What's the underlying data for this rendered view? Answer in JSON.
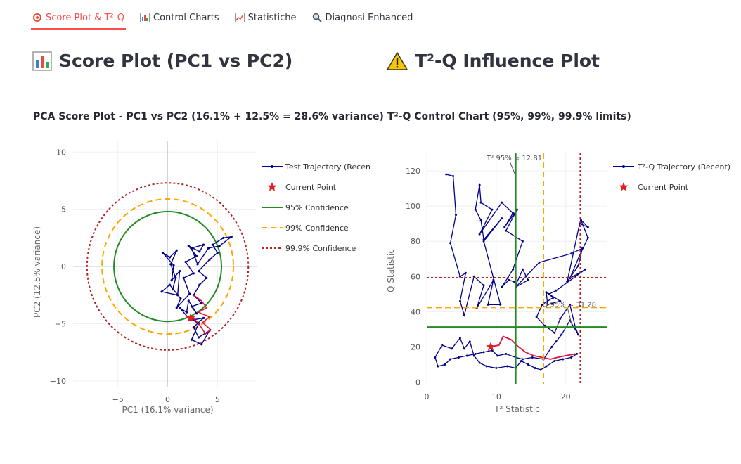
{
  "tabs": [
    {
      "label": "Score Plot & T²-Q",
      "icon": "target-icon",
      "active": true
    },
    {
      "label": "Control Charts",
      "icon": "bar-chart-icon",
      "active": false
    },
    {
      "label": "Statistiche",
      "icon": "line-chart-icon",
      "active": false
    },
    {
      "label": "Diagnosi Enhanced",
      "icon": "magnifier-icon",
      "active": false
    }
  ],
  "sections": {
    "left": {
      "title": "Score Plot (PC1 vs PC2)",
      "icon": "bar-chart-icon"
    },
    "right": {
      "title": "T²-Q Influence Plot",
      "icon": "warning-icon"
    }
  },
  "colors": {
    "accent": "#ff4b4b",
    "trajectory": "#00008b",
    "recent": "#dc143c",
    "ci95": "#228b22",
    "ci99": "#ffa500",
    "ci999": "#b22222"
  },
  "chart_data": [
    {
      "type": "scatter",
      "title": "PCA Score Plot - PC1 vs PC2 (16.1% + 12.5% = 28.6% variance)",
      "xlabel": "PC1 (16.1% variance)",
      "ylabel": "PC2 (12.5% variance)",
      "xlim": [
        -9.5,
        9
      ],
      "ylim": [
        -10.5,
        11
      ],
      "xticks": [
        -5,
        0,
        5
      ],
      "yticks": [
        -10,
        -5,
        0,
        5,
        10
      ],
      "grid": true,
      "legend_position": "right",
      "legend": [
        "Test Trajectory (Recent)",
        "Current Point",
        "95% Confidence",
        "99% Confidence",
        "99.9% Confidence"
      ],
      "confidence_ellipses": [
        {
          "label": "95% Confidence",
          "rx": 5.4,
          "ry": 4.8
        },
        {
          "label": "99% Confidence",
          "rx": 6.6,
          "ry": 5.9
        },
        {
          "label": "99.9% Confidence",
          "rx": 8.1,
          "ry": 7.3
        }
      ],
      "trajectory": [
        [
          0.5,
          -2
        ],
        [
          0.8,
          -1
        ],
        [
          0.3,
          0.2
        ],
        [
          0.9,
          1.4
        ],
        [
          0.2,
          0.8
        ],
        [
          -0.5,
          1.2
        ],
        [
          0.6,
          0.1
        ],
        [
          0.4,
          -1.2
        ],
        [
          1.2,
          -0.4
        ],
        [
          1.0,
          -2.5
        ],
        [
          -0.6,
          -2.2
        ],
        [
          0.2,
          -1.6
        ],
        [
          1.3,
          -2.8
        ],
        [
          0.9,
          -3.6
        ],
        [
          2.2,
          -2.4
        ],
        [
          1.6,
          -1.0
        ],
        [
          2.6,
          -0.6
        ],
        [
          1.8,
          0.4
        ],
        [
          2.9,
          0.9
        ],
        [
          2.1,
          1.8
        ],
        [
          3.2,
          1.3
        ],
        [
          3.6,
          1.9
        ],
        [
          2.4,
          1.6
        ],
        [
          3.0,
          0.2
        ],
        [
          4.1,
          1.6
        ],
        [
          5.2,
          1.8
        ],
        [
          6.4,
          2.6
        ],
        [
          5.6,
          2.5
        ],
        [
          4.5,
          1.9
        ],
        [
          5.0,
          1.2
        ],
        [
          4.2,
          0.6
        ],
        [
          3.1,
          -0.4
        ],
        [
          3.9,
          -1.0
        ],
        [
          3.2,
          -1.6
        ],
        [
          2.6,
          -2.5
        ],
        [
          3.4,
          -3.2
        ],
        [
          2.4,
          -3.5
        ],
        [
          2.9,
          -4.1
        ],
        [
          2.1,
          -3.0
        ],
        [
          1.9,
          -4.0
        ],
        [
          1.2,
          -3.6
        ],
        [
          2.3,
          -4.7
        ],
        [
          3.6,
          -4.5
        ],
        [
          2.6,
          -5.3
        ],
        [
          3.1,
          -6.2
        ],
        [
          4.2,
          -5.6
        ],
        [
          3.4,
          -6.8
        ],
        [
          2.4,
          -6.4
        ],
        [
          3.1,
          -5.0
        ],
        [
          2.3,
          -4.5
        ]
      ],
      "trajectory_recent": [
        [
          2.6,
          -2.5
        ],
        [
          3.4,
          -3.0
        ],
        [
          3.9,
          -3.6
        ],
        [
          3.1,
          -4.0
        ],
        [
          4.2,
          -4.4
        ],
        [
          3.5,
          -4.9
        ],
        [
          4.3,
          -5.5
        ],
        [
          3.8,
          -5.9
        ],
        [
          3.2,
          -5.1
        ],
        [
          2.7,
          -4.6
        ],
        [
          2.3,
          -4.5
        ]
      ],
      "current_point": [
        2.3,
        -4.5
      ]
    },
    {
      "type": "scatter",
      "title": "T²-Q Control Chart (95%, 99%, 99.9% limits)",
      "xlabel": "T² Statistic",
      "ylabel": "Q Statistic",
      "xlim": [
        0,
        26
      ],
      "ylim": [
        -1,
        130
      ],
      "xticks": [
        0,
        10,
        20
      ],
      "yticks": [
        0,
        20,
        40,
        60,
        80,
        100,
        120
      ],
      "grid": true,
      "legend_position": "right",
      "legend": [
        "T²-Q Trajectory (Recent)",
        "Current Point"
      ],
      "limits": {
        "t2": [
          {
            "level": "95%",
            "value": 12.81
          },
          {
            "level": "99%",
            "value": 16.8
          },
          {
            "level": "99.9%",
            "value": 22.1
          }
        ],
        "q": [
          {
            "level": "95%",
            "value": 31.28
          },
          {
            "level": "99%",
            "value": 42.4
          },
          {
            "level": "99.9%",
            "value": 59.3
          }
        ]
      },
      "annotations": [
        {
          "text": "T² 95% = 12.81",
          "x": 12.81,
          "y": 131
        },
        {
          "text": "Q 95% = 31.28",
          "x": 20.5,
          "y": 42
        }
      ],
      "trajectory": [
        [
          2.8,
          118
        ],
        [
          3.8,
          117
        ],
        [
          4.2,
          95
        ],
        [
          3.4,
          79
        ],
        [
          4.8,
          60
        ],
        [
          5.6,
          62
        ],
        [
          4.8,
          46
        ],
        [
          5.4,
          38
        ],
        [
          6.8,
          60
        ],
        [
          8.2,
          55
        ],
        [
          7.2,
          42
        ],
        [
          9.6,
          58
        ],
        [
          8.8,
          44
        ],
        [
          10.6,
          44
        ],
        [
          8.2,
          80
        ],
        [
          10.8,
          93
        ],
        [
          8.2,
          81
        ],
        [
          7.8,
          92
        ],
        [
          7.0,
          98
        ],
        [
          7.6,
          112
        ],
        [
          7.8,
          102
        ],
        [
          9.4,
          98
        ],
        [
          7.6,
          84
        ],
        [
          10.8,
          102
        ],
        [
          12.4,
          96
        ],
        [
          11.2,
          88
        ],
        [
          13.0,
          98
        ],
        [
          11.4,
          86
        ],
        [
          13.8,
          80
        ],
        [
          12.4,
          64
        ],
        [
          10.8,
          54
        ],
        [
          11.8,
          58
        ],
        [
          12.6,
          57
        ],
        [
          12.8,
          55
        ],
        [
          13.8,
          64
        ],
        [
          14.6,
          58
        ],
        [
          12.8,
          54
        ],
        [
          16.2,
          68
        ],
        [
          20.8,
          73
        ],
        [
          22.4,
          76
        ],
        [
          21.8,
          66
        ],
        [
          20.2,
          57
        ],
        [
          22.0,
          90
        ],
        [
          23.2,
          88
        ],
        [
          22.2,
          92
        ],
        [
          23.2,
          82
        ],
        [
          22.0,
          72
        ],
        [
          20.6,
          59
        ],
        [
          22.8,
          64
        ],
        [
          18.6,
          52
        ],
        [
          17.6,
          50
        ],
        [
          19.2,
          46
        ],
        [
          17.4,
          44
        ],
        [
          17.2,
          51
        ],
        [
          18.2,
          48
        ],
        [
          16.6,
          44
        ],
        [
          15.8,
          37
        ],
        [
          17.0,
          32
        ],
        [
          18.4,
          28
        ],
        [
          19.2,
          36
        ],
        [
          20.6,
          44
        ],
        [
          21.4,
          31
        ],
        [
          21.8,
          27
        ],
        [
          20.6,
          35
        ],
        [
          19.4,
          27
        ],
        [
          18.6,
          23
        ],
        [
          18.0,
          20
        ],
        [
          16.8,
          13
        ],
        [
          15.2,
          14
        ],
        [
          13.8,
          13
        ],
        [
          12.8,
          14
        ],
        [
          11.4,
          16
        ],
        [
          10.2,
          15
        ],
        [
          9.4,
          18
        ],
        [
          8.2,
          17
        ],
        [
          7.0,
          16
        ],
        [
          5.8,
          15
        ],
        [
          4.6,
          14
        ],
        [
          3.4,
          13
        ],
        [
          2.6,
          10
        ],
        [
          1.6,
          9
        ],
        [
          1.2,
          14
        ],
        [
          2.2,
          21
        ],
        [
          3.6,
          19
        ],
        [
          4.8,
          25
        ],
        [
          5.4,
          19
        ],
        [
          6.2,
          23
        ],
        [
          6.8,
          15
        ],
        [
          7.6,
          11
        ],
        [
          8.6,
          9
        ],
        [
          10.0,
          8
        ],
        [
          11.6,
          9
        ],
        [
          12.8,
          8
        ],
        [
          13.6,
          12
        ],
        [
          14.6,
          10
        ],
        [
          15.6,
          8
        ],
        [
          16.4,
          7
        ],
        [
          17.2,
          9
        ],
        [
          18.4,
          12
        ],
        [
          19.6,
          13
        ],
        [
          20.8,
          14
        ],
        [
          21.6,
          16
        ]
      ],
      "trajectory_recent": [
        [
          9.2,
          20
        ],
        [
          10.4,
          21
        ],
        [
          11.0,
          26
        ],
        [
          12.2,
          24
        ],
        [
          13.2,
          20
        ],
        [
          14.2,
          17
        ],
        [
          15.4,
          15
        ],
        [
          16.6,
          14
        ],
        [
          17.8,
          13
        ],
        [
          18.8,
          14
        ],
        [
          20.0,
          15
        ],
        [
          21.4,
          16
        ]
      ],
      "current_point": [
        9.2,
        20
      ]
    }
  ]
}
